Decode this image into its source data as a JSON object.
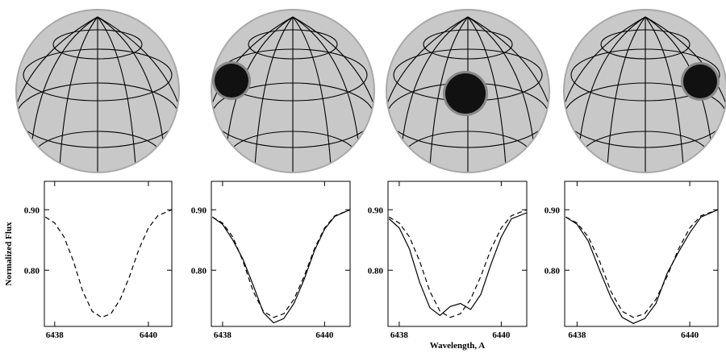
{
  "chart_data": [
    {
      "type": "line",
      "y_label": "Normalized Flux",
      "x": [
        6437.8,
        6438.0,
        6438.2,
        6438.4,
        6438.6,
        6438.8,
        6439.0,
        6439.2,
        6439.4,
        6439.6,
        6439.8,
        6440.0,
        6440.2,
        6440.5
      ],
      "series": [
        {
          "color": "#000000",
          "dashed": true,
          "values": [
            0.888,
            0.878,
            0.855,
            0.815,
            0.765,
            0.732,
            0.722,
            0.728,
            0.752,
            0.79,
            0.835,
            0.87,
            0.89,
            0.9
          ]
        }
      ],
      "xlim": [
        6437.78,
        6440.5
      ],
      "ylim": [
        0.707,
        0.947
      ],
      "xticks": [
        6438,
        6440
      ],
      "yticks": [
        {
          "value": 0.8,
          "label": "0.80"
        },
        {
          "value": 0.9,
          "label": "0.90"
        }
      ]
    },
    {
      "type": "line",
      "x": [
        6437.8,
        6438.0,
        6438.2,
        6438.4,
        6438.6,
        6438.8,
        6439.0,
        6439.2,
        6439.4,
        6439.6,
        6439.8,
        6440.0,
        6440.2,
        6440.5
      ],
      "series": [
        {
          "color": "#000000",
          "dashed": true,
          "values": [
            0.888,
            0.878,
            0.855,
            0.815,
            0.765,
            0.732,
            0.722,
            0.728,
            0.752,
            0.79,
            0.835,
            0.87,
            0.89,
            0.9
          ]
        },
        {
          "color": "#000000",
          "dashed": false,
          "values": [
            0.888,
            0.876,
            0.85,
            0.818,
            0.775,
            0.73,
            0.713,
            0.72,
            0.745,
            0.785,
            0.832,
            0.868,
            0.889,
            0.9
          ]
        }
      ],
      "xlim": [
        6437.78,
        6440.5
      ],
      "ylim": [
        0.707,
        0.947
      ],
      "xticks": [
        6438,
        6440
      ],
      "yticks": [
        {
          "value": 0.8,
          "label": "0.80"
        },
        {
          "value": 0.9,
          "label": "0.90"
        }
      ]
    },
    {
      "type": "line",
      "x_label": "Wavelength, A",
      "x": [
        6437.8,
        6438.0,
        6438.2,
        6438.4,
        6438.6,
        6438.8,
        6439.0,
        6439.2,
        6439.4,
        6439.6,
        6439.8,
        6440.0,
        6440.2,
        6440.5
      ],
      "series": [
        {
          "color": "#000000",
          "dashed": true,
          "values": [
            0.888,
            0.878,
            0.855,
            0.815,
            0.765,
            0.732,
            0.722,
            0.728,
            0.752,
            0.79,
            0.835,
            0.87,
            0.89,
            0.9
          ]
        },
        {
          "color": "#000000",
          "dashed": false,
          "values": [
            0.885,
            0.87,
            0.835,
            0.78,
            0.738,
            0.725,
            0.74,
            0.745,
            0.735,
            0.76,
            0.81,
            0.855,
            0.885,
            0.895
          ]
        }
      ],
      "xlim": [
        6437.78,
        6440.5
      ],
      "ylim": [
        0.707,
        0.947
      ],
      "xticks": [
        6438,
        6440
      ],
      "yticks": [
        {
          "value": 0.8,
          "label": "0.80"
        },
        {
          "value": 0.9,
          "label": "0.90"
        }
      ]
    },
    {
      "type": "line",
      "x": [
        6437.8,
        6438.0,
        6438.2,
        6438.4,
        6438.6,
        6438.8,
        6439.0,
        6439.2,
        6439.4,
        6439.6,
        6439.8,
        6440.0,
        6440.2,
        6440.5
      ],
      "series": [
        {
          "color": "#000000",
          "dashed": true,
          "values": [
            0.888,
            0.878,
            0.855,
            0.815,
            0.765,
            0.732,
            0.722,
            0.728,
            0.752,
            0.79,
            0.835,
            0.87,
            0.89,
            0.9
          ]
        },
        {
          "color": "#000000",
          "dashed": false,
          "values": [
            0.888,
            0.876,
            0.848,
            0.8,
            0.755,
            0.722,
            0.712,
            0.72,
            0.745,
            0.795,
            0.83,
            0.862,
            0.888,
            0.9
          ]
        }
      ],
      "xlim": [
        6437.78,
        6440.5
      ],
      "ylim": [
        0.707,
        0.947
      ],
      "xticks": [
        6438,
        6440
      ],
      "yticks": [
        {
          "value": 0.8,
          "label": "0.80"
        },
        {
          "value": 0.9,
          "label": "0.90"
        }
      ]
    }
  ]
}
